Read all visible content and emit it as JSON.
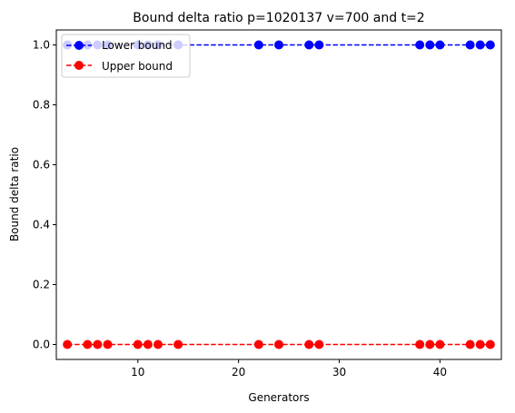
{
  "chart_data": {
    "type": "line",
    "title": "Bound delta ratio p=1020137 v=700 and t=2",
    "xlabel": "Generators",
    "ylabel": "Bound delta ratio",
    "xlim": [
      1.9,
      46.1
    ],
    "ylim": [
      -0.05,
      1.05
    ],
    "xticks": [
      10,
      20,
      30,
      40
    ],
    "yticks": [
      0.0,
      0.2,
      0.4,
      0.6,
      0.8,
      1.0
    ],
    "xtick_labels": [
      "10",
      "20",
      "30",
      "40"
    ],
    "ytick_labels": [
      "0.0",
      "0.2",
      "0.4",
      "0.6",
      "0.8",
      "1.0"
    ],
    "grid": false,
    "legend_position": "top-left",
    "x": [
      3,
      5,
      6,
      7,
      10,
      11,
      12,
      14,
      22,
      24,
      27,
      28,
      38,
      39,
      40,
      43,
      44,
      45
    ],
    "series": [
      {
        "name": "Lower bound",
        "color": "#0000ff",
        "line_style": "dashed",
        "marker": "circle",
        "values": [
          1,
          1,
          1,
          1,
          1,
          1,
          1,
          1,
          1,
          1,
          1,
          1,
          1,
          1,
          1,
          1,
          1,
          1
        ]
      },
      {
        "name": "Upper bound",
        "color": "#ff0000",
        "line_style": "dashed",
        "marker": "circle",
        "values": [
          0,
          0,
          0,
          0,
          0,
          0,
          0,
          0,
          0,
          0,
          0,
          0,
          0,
          0,
          0,
          0,
          0,
          0
        ]
      }
    ]
  }
}
